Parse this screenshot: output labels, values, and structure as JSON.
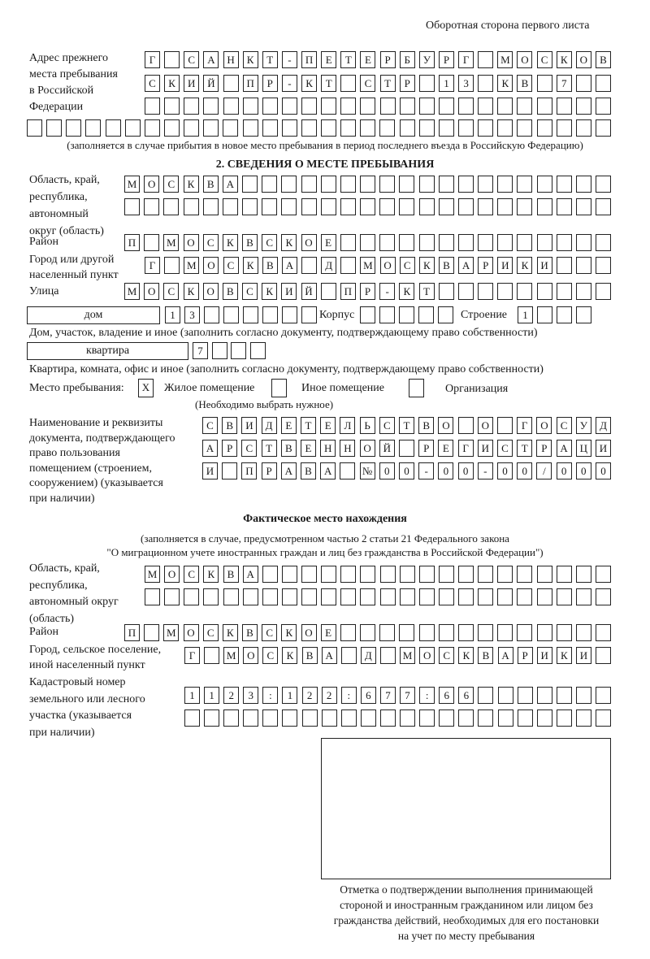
{
  "header": "Оборотная сторона первого листа",
  "previous_address": {
    "label": "Адрес прежнего\nместа пребывания\nв Российской\nФедерации",
    "rows": [
      "Г САНКТ-ПЕТЕРБУРГ МОСКОВ",
      "СКИЙ ПР-КТ СТР 13 КВ 7  ",
      "",
      ""
    ],
    "note": "(заполняется в случае прибытия в новое место пребывания в период последнего въезда в Российскую Федерацию)"
  },
  "section2": {
    "title": "2. СВЕДЕНИЯ О МЕСТЕ ПРЕБЫВАНИЯ",
    "region_label": "Область, край,\nреспублика,\nавтономный\nокруг (область)",
    "region_rows": [
      "МОСКВА",
      ""
    ],
    "district_label": "Район",
    "district": "П МОСКВСКОЕ",
    "city_label": "Город или другой\nнаселенный пункт",
    "city": "Г МОСКВА Д МОСКВАРИКИ",
    "street_label": "Улица",
    "street": "МОСКОВСКИЙ ПР-КТ",
    "house_type": "дом",
    "house_number": "13",
    "building_label": "Корпус",
    "building": "",
    "structure_label": "Строение",
    "structure": "1",
    "house_note": "Дом, участок, владение и иное (заполнить согласно документу, подтверждающему право собственности)",
    "apartment_type": "квартира",
    "apartment_number": "7",
    "apartment_note": "Квартира, комната, офис и иное (заполнить согласно документу, подтверждающему право собственности)",
    "stay_place_label": "Место пребывания:",
    "options": [
      {
        "label": "Жилое помещение",
        "mark": "X"
      },
      {
        "label": "Иное помещение",
        "mark": ""
      },
      {
        "label": "Организация",
        "mark": ""
      }
    ],
    "options_note": "(Необходимо выбрать нужное)",
    "document_label": "Наименование и реквизиты\nдокумента, подтверждающего\nправо пользования\nпомещением (строением,\nсооружением) (указывается\nпри наличии)",
    "document_rows": [
      "СВИДЕТЕЛЬСТВО О ГОСУД",
      "АРСТВЕННОЙ РЕГИСТРАЦИ",
      "И ПРАВА №00-00-00/000"
    ]
  },
  "actual_location": {
    "title": "Фактическое место нахождения",
    "note_line1": "(заполняется в случае, предусмотренном частью 2 статьи 21 Федерального закона",
    "note_line2": "\"О миграционном учете иностранных граждан и лиц без гражданства в Российской Федерации\")",
    "region_label": "Область, край,\nреспублика,\nавтономный округ\n(область)",
    "region_rows": [
      "МОСКВА",
      ""
    ],
    "district_label": "Район",
    "district": "П МОСКВСКОЕ",
    "city_label": "Город, сельское поселение,\nиной населенный пункт",
    "city": "Г МОСКВА Д МОСКВАРИКИ",
    "cadastral_label": "Кадастровый номер\nземельного или лесного\nучастка (указывается\nпри наличии)",
    "cadastral_rows": [
      "1123:122:677:66",
      ""
    ]
  },
  "confirmation": {
    "caption": "Отметка о подтверждении выполнения принимающей\nстороной и иностранным гражданином или лицом без\nгражданства действий, необходимых для его постановки\nна учет по месту пребывания"
  }
}
